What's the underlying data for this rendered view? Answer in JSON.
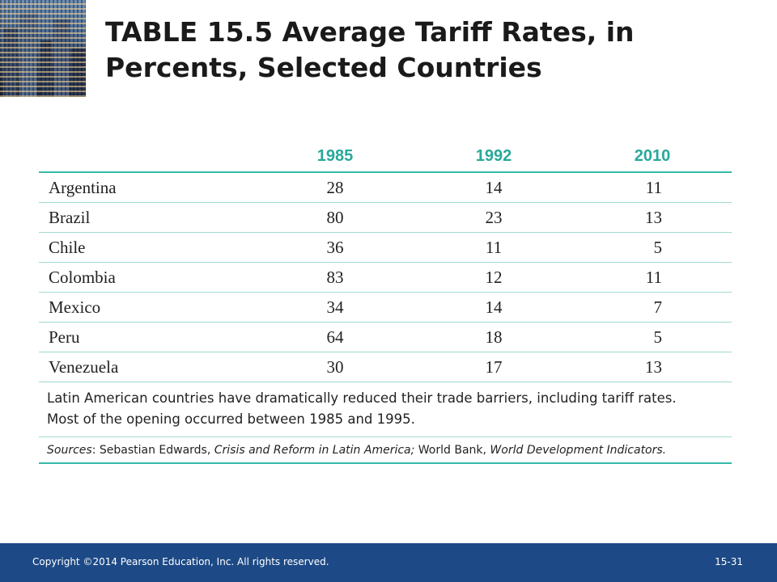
{
  "title": "TABLE 15.5  Average Tariff Rates, in Percents, Selected Countries",
  "table": {
    "columns": [
      "1985",
      "1992",
      "2010"
    ],
    "rows": [
      {
        "country": "Argentina",
        "v1985": "28",
        "v1992": "14",
        "v2010": "11"
      },
      {
        "country": "Brazil",
        "v1985": "80",
        "v1992": "23",
        "v2010": "13"
      },
      {
        "country": "Chile",
        "v1985": "36",
        "v1992": "11",
        "v2010": "5"
      },
      {
        "country": "Colombia",
        "v1985": "83",
        "v1992": "12",
        "v2010": "11"
      },
      {
        "country": "Mexico",
        "v1985": "34",
        "v1992": "14",
        "v2010": "7"
      },
      {
        "country": "Peru",
        "v1985": "64",
        "v1992": "18",
        "v2010": "5"
      },
      {
        "country": "Venezuela",
        "v1985": "30",
        "v1992": "17",
        "v2010": "13"
      }
    ],
    "note_line1": "Latin American countries have dramatically reduced their trade barriers, including tariff rates.",
    "note_line2": "Most of the opening occurred between 1985 and 1995.",
    "sources": {
      "label": "Sources",
      "author1": ": Sebastian Edwards, ",
      "work1": "Crisis and Reform in Latin America;",
      "author2": " World Bank, ",
      "work2": "World Development Indicators."
    },
    "header_color": "#27a99a",
    "rule_color": "#35b8a8"
  },
  "footer": {
    "copyright": "Copyright ©2014 Pearson Education, Inc. All rights reserved.",
    "page_number": "15-31",
    "background": "#1d4a86"
  },
  "decor": {
    "image": "city-skyline-photo"
  }
}
